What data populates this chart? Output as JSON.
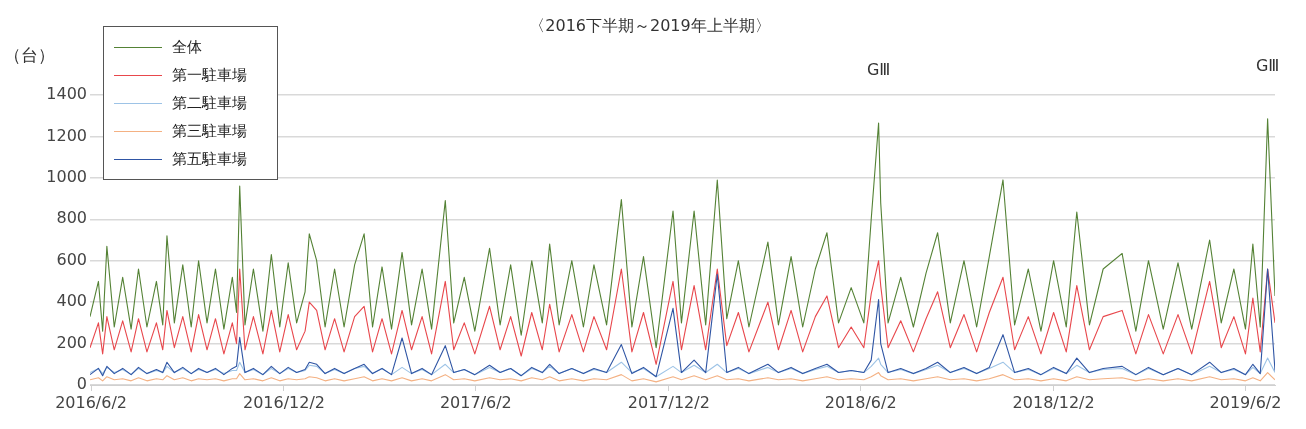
{
  "chart_data": {
    "type": "line",
    "title": "〈2016下半期～2019年上半期〉",
    "ylabel": "（台）",
    "x": [
      "2016-06-01",
      "2016-06-09",
      "2016-06-13",
      "2016-06-17",
      "2016-06-24",
      "2016-07-02",
      "2016-07-10",
      "2016-07-17",
      "2016-07-25",
      "2016-08-03",
      "2016-08-09",
      "2016-08-13",
      "2016-08-20",
      "2016-08-28",
      "2016-09-05",
      "2016-09-12",
      "2016-09-20",
      "2016-09-28",
      "2016-10-06",
      "2016-10-14",
      "2016-10-18",
      "2016-10-21",
      "2016-10-26",
      "2016-11-03",
      "2016-11-12",
      "2016-11-20",
      "2016-11-28",
      "2016-12-06",
      "2016-12-14",
      "2016-12-22",
      "2016-12-26",
      "2017-01-02",
      "2017-01-10",
      "2017-01-19",
      "2017-01-28",
      "2017-02-07",
      "2017-02-16",
      "2017-02-24",
      "2017-03-05",
      "2017-03-14",
      "2017-03-24",
      "2017-04-02",
      "2017-04-12",
      "2017-04-21",
      "2017-05-04",
      "2017-05-12",
      "2017-05-22",
      "2017-06-01",
      "2017-06-15",
      "2017-06-25",
      "2017-07-05",
      "2017-07-15",
      "2017-07-25",
      "2017-08-04",
      "2017-08-11",
      "2017-08-20",
      "2017-09-01",
      "2017-09-12",
      "2017-09-22",
      "2017-10-04",
      "2017-10-18",
      "2017-10-28",
      "2017-11-08",
      "2017-11-20",
      "2017-12-06",
      "2017-12-14",
      "2017-12-26",
      "2018-01-06",
      "2018-01-17",
      "2018-01-26",
      "2018-02-06",
      "2018-02-16",
      "2018-03-06",
      "2018-03-16",
      "2018-03-28",
      "2018-04-08",
      "2018-04-20",
      "2018-05-01",
      "2018-05-12",
      "2018-05-24",
      "2018-06-05",
      "2018-06-12",
      "2018-06-19",
      "2018-06-21",
      "2018-06-28",
      "2018-07-10",
      "2018-07-22",
      "2018-08-03",
      "2018-08-14",
      "2018-08-26",
      "2018-09-08",
      "2018-09-20",
      "2018-10-02",
      "2018-10-15",
      "2018-10-26",
      "2018-11-08",
      "2018-11-20",
      "2018-12-02",
      "2018-12-14",
      "2018-12-24",
      "2019-01-05",
      "2019-01-18",
      "2019-02-05",
      "2019-02-18",
      "2019-03-02",
      "2019-03-16",
      "2019-03-30",
      "2019-04-12",
      "2019-04-29",
      "2019-05-10",
      "2019-05-22",
      "2019-06-02",
      "2019-06-09",
      "2019-06-16",
      "2019-06-23",
      "2019-06-30"
    ],
    "series": [
      {
        "name": "全体",
        "color": "#548235",
        "values": [
          330,
          500,
          260,
          670,
          280,
          520,
          270,
          560,
          280,
          500,
          290,
          720,
          300,
          580,
          280,
          600,
          300,
          560,
          270,
          520,
          350,
          960,
          290,
          560,
          260,
          630,
          280,
          590,
          300,
          450,
          730,
          600,
          280,
          560,
          280,
          580,
          730,
          280,
          570,
          270,
          640,
          290,
          560,
          270,
          890,
          300,
          520,
          260,
          660,
          290,
          580,
          240,
          600,
          300,
          680,
          290,
          600,
          280,
          580,
          290,
          895,
          280,
          620,
          180,
          840,
          300,
          840,
          290,
          990,
          320,
          600,
          280,
          690,
          290,
          620,
          280,
          560,
          735,
          300,
          470,
          300,
          800,
          1265,
          880,
          300,
          520,
          280,
          540,
          735,
          300,
          600,
          280,
          620,
          990,
          290,
          560,
          260,
          600,
          280,
          835,
          290,
          560,
          635,
          260,
          600,
          270,
          590,
          270,
          700,
          300,
          560,
          270,
          680,
          280,
          1285,
          430
        ]
      },
      {
        "name": "第一駐車場",
        "color": "#e8474c",
        "values": [
          180,
          300,
          150,
          330,
          170,
          310,
          160,
          320,
          160,
          300,
          170,
          360,
          180,
          330,
          160,
          340,
          170,
          320,
          150,
          300,
          200,
          560,
          170,
          330,
          150,
          360,
          160,
          340,
          170,
          260,
          400,
          360,
          170,
          320,
          160,
          330,
          380,
          160,
          320,
          150,
          360,
          170,
          330,
          150,
          500,
          170,
          300,
          150,
          380,
          170,
          330,
          140,
          350,
          170,
          390,
          160,
          340,
          160,
          330,
          170,
          560,
          160,
          350,
          100,
          500,
          170,
          480,
          170,
          560,
          190,
          350,
          160,
          400,
          170,
          360,
          160,
          330,
          430,
          180,
          280,
          180,
          440,
          600,
          480,
          180,
          310,
          160,
          320,
          450,
          180,
          340,
          160,
          350,
          520,
          170,
          330,
          150,
          350,
          160,
          480,
          170,
          330,
          360,
          150,
          340,
          150,
          340,
          150,
          500,
          180,
          330,
          150,
          420,
          160,
          560,
          300
        ]
      },
      {
        "name": "第二駐車場",
        "color": "#9dc3e6",
        "values": [
          60,
          80,
          55,
          85,
          60,
          75,
          50,
          80,
          55,
          70,
          60,
          90,
          60,
          80,
          55,
          75,
          60,
          75,
          55,
          70,
          70,
          110,
          60,
          75,
          50,
          80,
          55,
          80,
          60,
          70,
          95,
          90,
          55,
          75,
          55,
          80,
          90,
          55,
          80,
          50,
          85,
          55,
          75,
          50,
          100,
          60,
          75,
          50,
          85,
          60,
          80,
          45,
          80,
          60,
          90,
          55,
          80,
          55,
          75,
          60,
          110,
          60,
          80,
          40,
          90,
          60,
          95,
          60,
          100,
          60,
          80,
          55,
          85,
          60,
          80,
          55,
          75,
          90,
          60,
          70,
          60,
          90,
          130,
          100,
          60,
          75,
          55,
          75,
          95,
          60,
          80,
          55,
          80,
          110,
          60,
          75,
          50,
          80,
          55,
          95,
          60,
          75,
          80,
          50,
          80,
          50,
          80,
          50,
          90,
          60,
          75,
          50,
          85,
          55,
          130,
          60
        ]
      },
      {
        "name": "第三駐車場",
        "color": "#f4b183",
        "values": [
          25,
          35,
          20,
          40,
          25,
          30,
          20,
          35,
          20,
          30,
          25,
          45,
          25,
          35,
          20,
          30,
          25,
          30,
          20,
          30,
          30,
          55,
          25,
          30,
          20,
          35,
          20,
          30,
          25,
          30,
          40,
          35,
          20,
          30,
          20,
          30,
          40,
          20,
          30,
          20,
          35,
          20,
          30,
          20,
          50,
          25,
          30,
          20,
          35,
          25,
          30,
          20,
          35,
          25,
          40,
          20,
          30,
          20,
          30,
          25,
          50,
          20,
          30,
          15,
          40,
          25,
          45,
          25,
          45,
          25,
          30,
          20,
          35,
          25,
          30,
          20,
          30,
          40,
          25,
          30,
          25,
          40,
          60,
          45,
          25,
          30,
          20,
          30,
          40,
          25,
          30,
          20,
          30,
          50,
          25,
          30,
          20,
          30,
          20,
          40,
          25,
          30,
          35,
          20,
          30,
          20,
          30,
          20,
          40,
          25,
          30,
          20,
          35,
          20,
          60,
          25
        ]
      },
      {
        "name": "第五駐車場",
        "color": "#2f55a4",
        "values": [
          50,
          80,
          45,
          90,
          55,
          80,
          50,
          85,
          55,
          75,
          60,
          110,
          60,
          85,
          55,
          80,
          60,
          80,
          50,
          80,
          90,
          230,
          60,
          80,
          50,
          90,
          55,
          85,
          60,
          75,
          110,
          100,
          55,
          80,
          55,
          80,
          100,
          55,
          80,
          50,
          227,
          55,
          80,
          50,
          190,
          60,
          75,
          50,
          95,
          60,
          80,
          45,
          85,
          60,
          100,
          55,
          80,
          55,
          80,
          60,
          195,
          55,
          85,
          40,
          370,
          60,
          120,
          60,
          535,
          60,
          85,
          55,
          100,
          60,
          85,
          55,
          80,
          100,
          60,
          70,
          60,
          120,
          413,
          200,
          60,
          80,
          55,
          80,
          110,
          60,
          85,
          55,
          85,
          243,
          60,
          80,
          50,
          85,
          55,
          130,
          60,
          80,
          90,
          50,
          85,
          50,
          80,
          50,
          110,
          60,
          80,
          50,
          100,
          55,
          560,
          70
        ]
      }
    ],
    "xlim": [
      "2016-06-01",
      "2019-06-30"
    ],
    "xticks": [
      {
        "value": "2016-06-02",
        "label": "2016/6/2"
      },
      {
        "value": "2016-12-02",
        "label": "2016/12/2"
      },
      {
        "value": "2017-06-02",
        "label": "2017/6/2"
      },
      {
        "value": "2017-12-02",
        "label": "2017/12/2"
      },
      {
        "value": "2018-06-02",
        "label": "2018/6/2"
      },
      {
        "value": "2018-12-02",
        "label": "2018/12/2"
      },
      {
        "value": "2019-06-02",
        "label": "2019/6/2"
      }
    ],
    "ylim": [
      0,
      1400
    ],
    "yticks": [
      0,
      200,
      400,
      600,
      800,
      1000,
      1200,
      1400
    ],
    "grid": "y",
    "legend": "top left",
    "marker": "none",
    "line_style": "solid",
    "annotations": [
      {
        "text": "GⅢ",
        "x": "2018-06-19",
        "y": 1265
      },
      {
        "text": "GⅢ",
        "x": "2019-06-23",
        "y": 1285
      }
    ]
  }
}
